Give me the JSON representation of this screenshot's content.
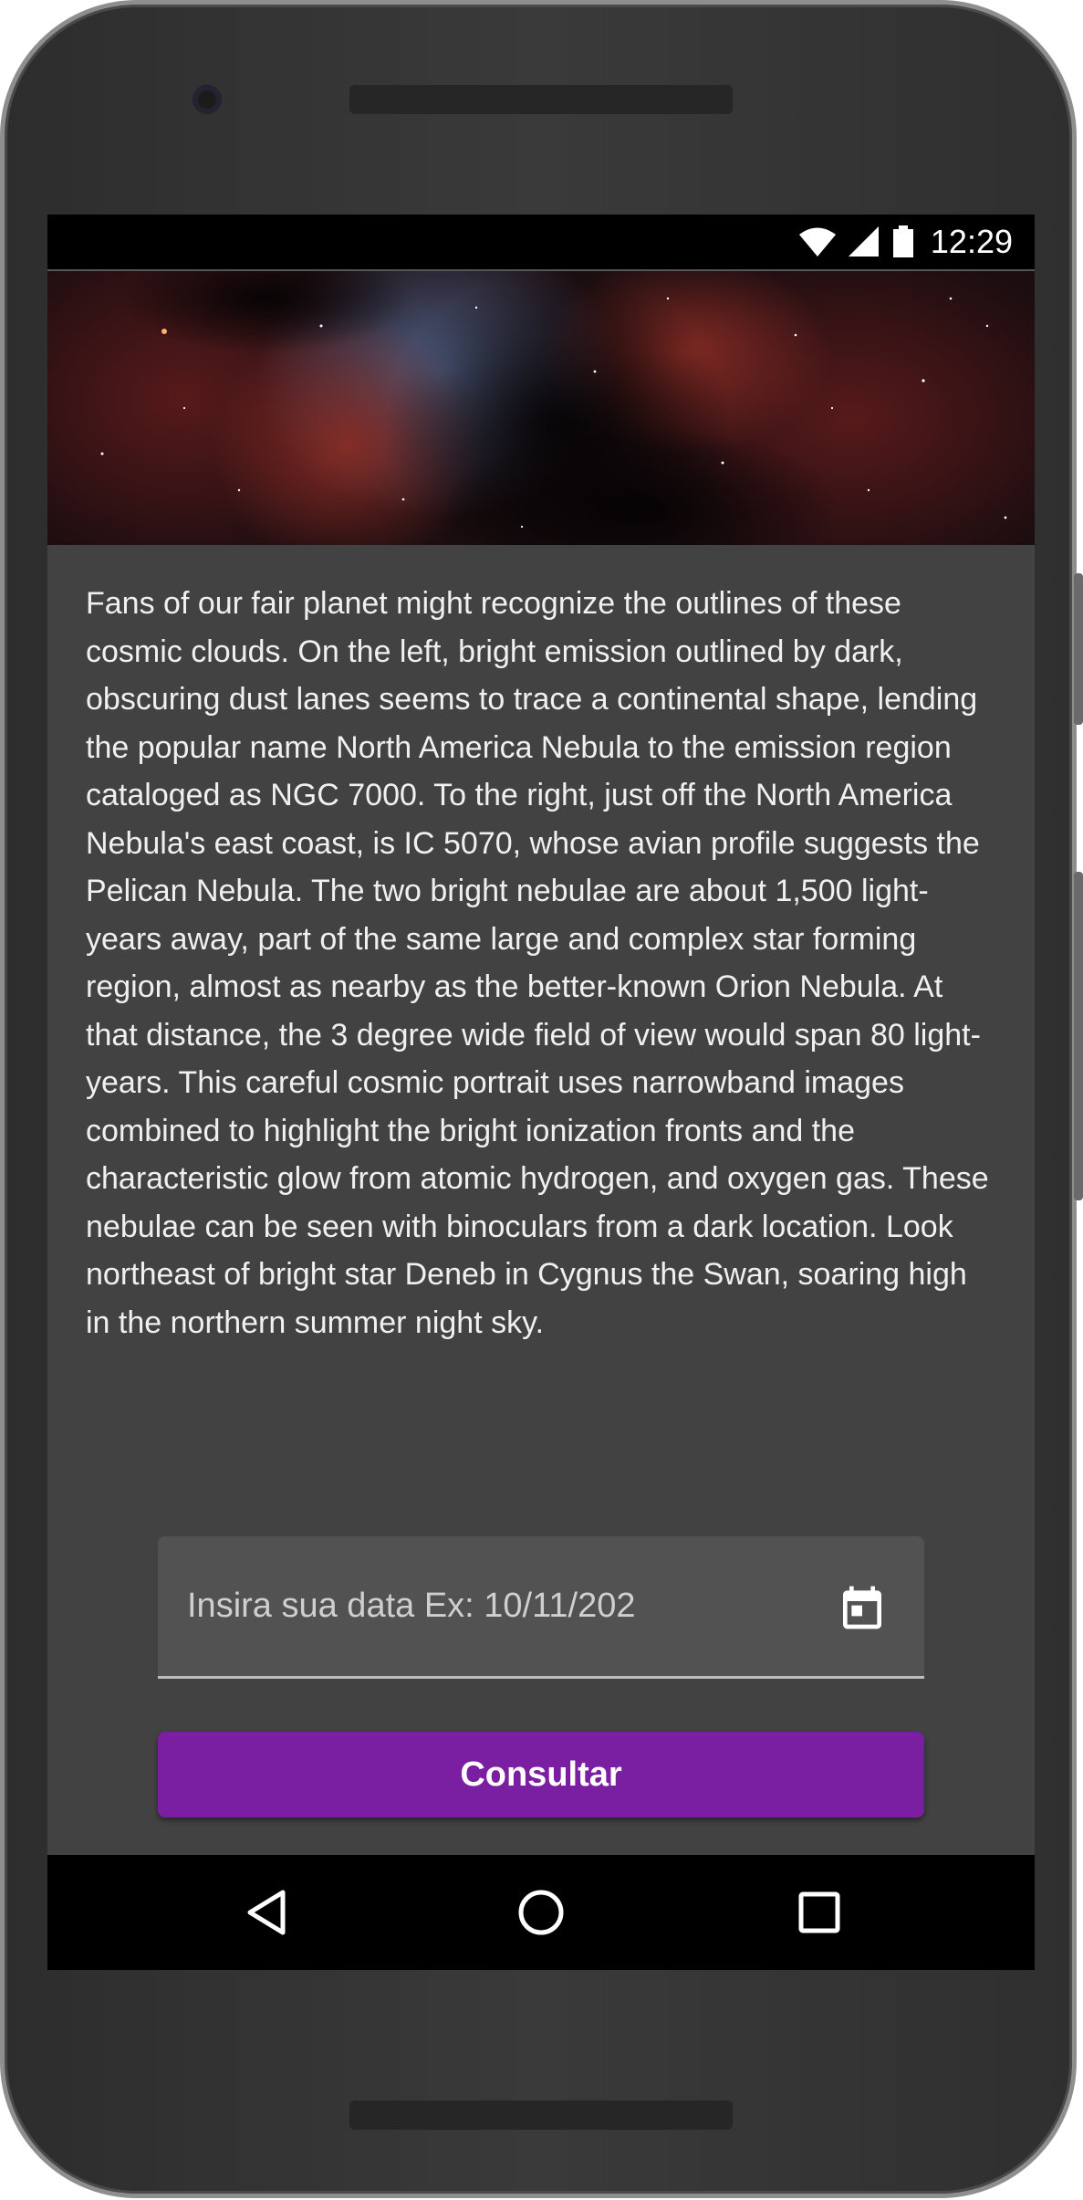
{
  "status_bar": {
    "time": "12:29",
    "icons": [
      "wifi-icon",
      "signal-icon",
      "battery-icon"
    ]
  },
  "banner": {
    "image": "nebula-image"
  },
  "content": {
    "description": "Fans of our fair planet might recognize the outlines of these cosmic clouds. On the left, bright emission outlined by dark, obscuring dust lanes seems to trace a continental shape, lending the popular name North America Nebula to the emission region cataloged as NGC 7000. To the right, just off the North America Nebula's east coast, is IC 5070, whose avian profile suggests the Pelican Nebula. The two bright nebulae are about 1,500 light-years away, part of the same large and complex star forming region, almost as nearby as the better-known Orion Nebula. At that distance, the 3 degree wide field of view would span 80 light-years. This careful cosmic portrait uses narrowband images combined to highlight the bright ionization fronts and the characteristic glow from atomic hydrogen, and oxygen gas. These nebulae can be seen with binoculars from a dark location. Look northeast of bright star Deneb in Cygnus the Swan, soaring high in the northern summer night sky."
  },
  "date_input": {
    "value": "",
    "placeholder": "Insira sua data Ex: 10/11/202",
    "icon": "calendar-icon"
  },
  "consult_button": {
    "label": "Consultar"
  },
  "colors": {
    "background": "#424242",
    "field_background": "#525252",
    "accent": "#7b1fa2",
    "text": "#f0f0f0"
  }
}
